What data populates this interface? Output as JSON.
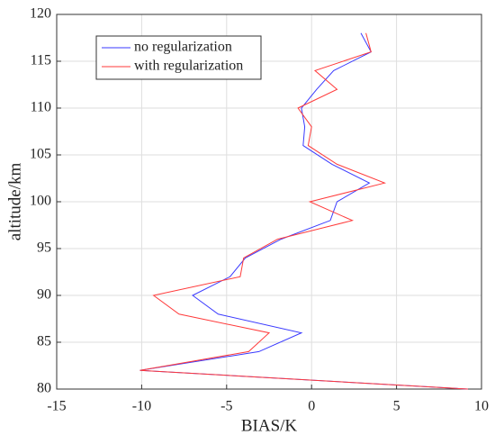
{
  "chart_data": {
    "type": "line",
    "xlabel": "BIAS/K",
    "ylabel": "altitude/km",
    "y": [
      118,
      116,
      114,
      112,
      110,
      108,
      106,
      104,
      102,
      100,
      98,
      96,
      94,
      92,
      90,
      88,
      86,
      84,
      82,
      80
    ],
    "series": [
      {
        "name": "no regularization",
        "color": "#3a3aff",
        "values": [
          2.9,
          3.5,
          1.3,
          0.3,
          -0.6,
          -0.4,
          -0.5,
          1.2,
          3.4,
          1.5,
          1.1,
          -1.8,
          -3.9,
          -4.8,
          -7.0,
          -5.5,
          -0.6,
          -3.1,
          -10.1,
          9.2
        ]
      },
      {
        "name": "with regularization",
        "color": "#ff3a3a",
        "values": [
          3.2,
          3.5,
          0.2,
          1.5,
          -0.8,
          0.0,
          -0.2,
          1.5,
          4.3,
          -0.1,
          2.4,
          -2.0,
          -4.0,
          -4.2,
          -9.3,
          -7.8,
          -2.5,
          -3.7,
          -10.1,
          9.2
        ]
      }
    ],
    "xlim": [
      -15,
      10
    ],
    "xticks": [
      -15,
      -10,
      -5,
      0,
      5,
      10
    ],
    "ylim": [
      80,
      120
    ],
    "yticks": [
      80,
      85,
      90,
      95,
      100,
      105,
      110,
      115,
      120
    ],
    "grid": true,
    "legend": "upper-left"
  }
}
